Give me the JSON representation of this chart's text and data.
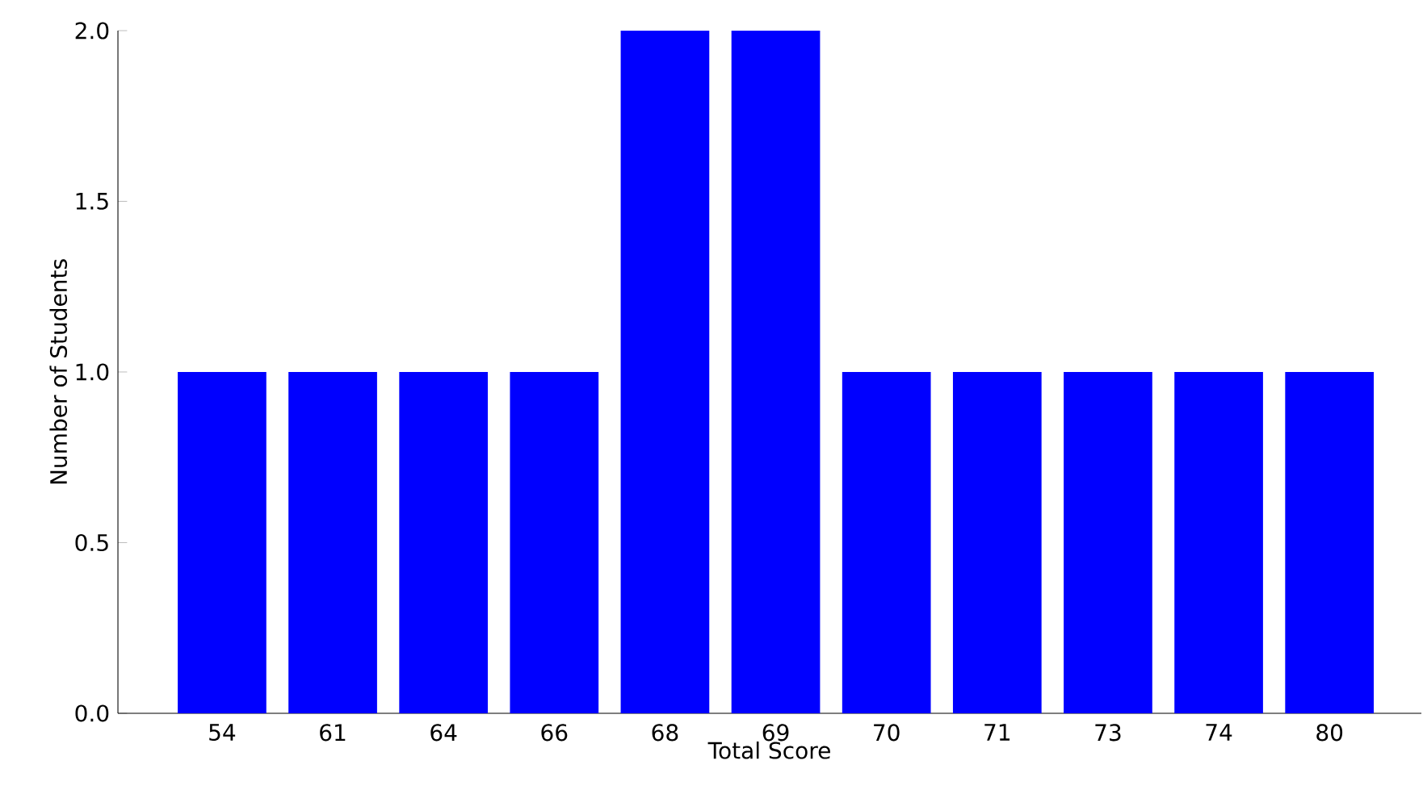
{
  "chart_data": {
    "type": "bar",
    "xlabel": "Total Score",
    "ylabel": "Number of Students",
    "categories": [
      "54",
      "61",
      "64",
      "66",
      "68",
      "69",
      "70",
      "71",
      "73",
      "74",
      "80"
    ],
    "values": [
      1,
      1,
      1,
      1,
      2,
      2,
      1,
      1,
      1,
      1,
      1
    ],
    "color": "#0000ff",
    "ylim": [
      0,
      2
    ],
    "yticks": [
      {
        "value": 0,
        "label": "0.0"
      },
      {
        "value": 0.5,
        "label": "0.5"
      },
      {
        "value": 1,
        "label": "1.0"
      },
      {
        "value": 1.5,
        "label": "1.5"
      },
      {
        "value": 2,
        "label": "2.0"
      }
    ],
    "grid": false
  }
}
